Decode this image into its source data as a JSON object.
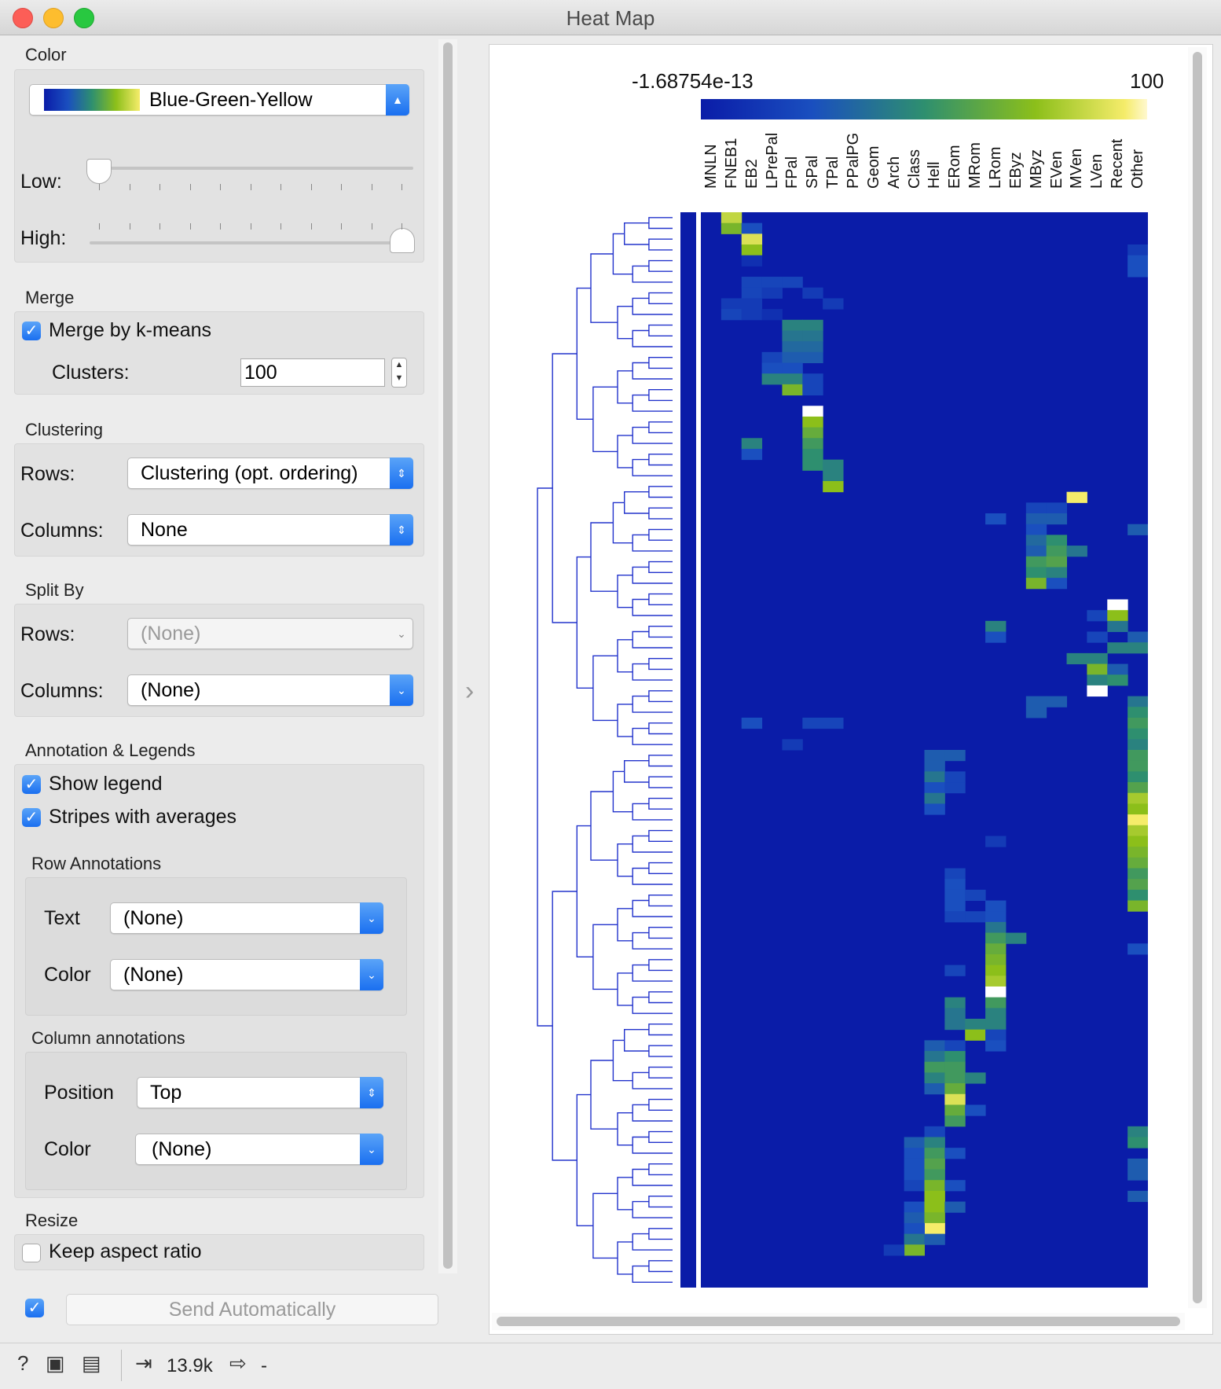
{
  "window": {
    "title": "Heat Map"
  },
  "color": {
    "section": "Color",
    "palette": "Blue-Green-Yellow",
    "low_label": "Low:",
    "high_label": "High:",
    "low_value": 0.0,
    "high_value": 1.0
  },
  "merge": {
    "section": "Merge",
    "merge_label": "Merge by k-means",
    "merge_checked": true,
    "clusters_label": "Clusters:",
    "clusters_value": "100"
  },
  "clustering": {
    "section": "Clustering",
    "rows_label": "Rows:",
    "rows_value": "Clustering (opt. ordering)",
    "columns_label": "Columns:",
    "columns_value": "None"
  },
  "split": {
    "section": "Split By",
    "rows_label": "Rows:",
    "rows_value": "(None)",
    "columns_label": "Columns:",
    "columns_value": "(None)"
  },
  "annotation": {
    "section": "Annotation & Legends",
    "show_legend": "Show legend",
    "stripes": "Stripes with averages",
    "row_section": "Row Annotations",
    "text_label": "Text",
    "text_value": "(None)",
    "row_color_label": "Color",
    "row_color_value": "(None)",
    "col_section": "Column annotations",
    "position_label": "Position",
    "position_value": "Top",
    "col_color_label": "Color",
    "col_color_value": "(None)"
  },
  "resize": {
    "section": "Resize",
    "keep_aspect": "Keep aspect ratio",
    "keep_checked": false
  },
  "send": {
    "label": "Send Automatically",
    "checked": true
  },
  "status": {
    "input_count": "13.9k",
    "output_count": "-"
  },
  "icons": [
    "help-icon",
    "save-icon",
    "report-icon",
    "input-icon",
    "output-icon",
    "expand-arrow-icon"
  ],
  "colors": {
    "low": "#0a1ca8",
    "mid": "#2e8f6f",
    "high_mid": "#8cbf1a",
    "high": "#f5ec6a",
    "max": "#ffffff"
  },
  "chart_data": {
    "type": "heatmap",
    "legend_min": "-1.68754e-13",
    "legend_max": "100",
    "columns": [
      "MNLN",
      "FNEB1",
      "EB2",
      "LPrePal",
      "FPal",
      "SPal",
      "TPal",
      "PPalPG",
      "Geom",
      "Arch",
      "Class",
      "Hell",
      "ERom",
      "MRom",
      "LRom",
      "EByz",
      "MByz",
      "EVen",
      "MVen",
      "LVen",
      "Recent",
      "Other"
    ],
    "rows": 100,
    "cells": [
      {
        "r": 0,
        "c": 1,
        "v": 85
      },
      {
        "r": 1,
        "c": 1,
        "v": 70
      },
      {
        "r": 1,
        "c": 2,
        "v": 25
      },
      {
        "r": 2,
        "c": 2,
        "v": 90
      },
      {
        "r": 3,
        "c": 2,
        "v": 75
      },
      {
        "r": 3,
        "c": 21,
        "v": 15
      },
      {
        "r": 4,
        "c": 2,
        "v": 10
      },
      {
        "r": 4,
        "c": 21,
        "v": 25
      },
      {
        "r": 5,
        "c": 21,
        "v": 25
      },
      {
        "r": 6,
        "c": 2,
        "v": 20
      },
      {
        "r": 6,
        "c": 3,
        "v": 20
      },
      {
        "r": 6,
        "c": 4,
        "v": 20
      },
      {
        "r": 7,
        "c": 2,
        "v": 20
      },
      {
        "r": 7,
        "c": 3,
        "v": 15
      },
      {
        "r": 7,
        "c": 5,
        "v": 15
      },
      {
        "r": 8,
        "c": 1,
        "v": 15
      },
      {
        "r": 8,
        "c": 2,
        "v": 15
      },
      {
        "r": 8,
        "c": 6,
        "v": 15
      },
      {
        "r": 9,
        "c": 1,
        "v": 20
      },
      {
        "r": 9,
        "c": 2,
        "v": 15
      },
      {
        "r": 9,
        "c": 3,
        "v": 10
      },
      {
        "r": 10,
        "c": 4,
        "v": 45
      },
      {
        "r": 10,
        "c": 5,
        "v": 45
      },
      {
        "r": 11,
        "c": 4,
        "v": 40
      },
      {
        "r": 11,
        "c": 5,
        "v": 40
      },
      {
        "r": 12,
        "c": 4,
        "v": 35
      },
      {
        "r": 12,
        "c": 5,
        "v": 35
      },
      {
        "r": 13,
        "c": 3,
        "v": 20
      },
      {
        "r": 13,
        "c": 4,
        "v": 30
      },
      {
        "r": 13,
        "c": 5,
        "v": 30
      },
      {
        "r": 14,
        "c": 3,
        "v": 25
      },
      {
        "r": 14,
        "c": 4,
        "v": 25
      },
      {
        "r": 15,
        "c": 3,
        "v": 45
      },
      {
        "r": 15,
        "c": 4,
        "v": 45
      },
      {
        "r": 15,
        "c": 5,
        "v": 20
      },
      {
        "r": 16,
        "c": 4,
        "v": 70
      },
      {
        "r": 16,
        "c": 5,
        "v": 20
      },
      {
        "r": 18,
        "c": 5,
        "v": 100
      },
      {
        "r": 19,
        "c": 5,
        "v": 75
      },
      {
        "r": 20,
        "c": 5,
        "v": 65
      },
      {
        "r": 21,
        "c": 2,
        "v": 45
      },
      {
        "r": 21,
        "c": 5,
        "v": 55
      },
      {
        "r": 22,
        "c": 2,
        "v": 25
      },
      {
        "r": 22,
        "c": 5,
        "v": 50
      },
      {
        "r": 23,
        "c": 5,
        "v": 50
      },
      {
        "r": 23,
        "c": 6,
        "v": 45
      },
      {
        "r": 24,
        "c": 6,
        "v": 45
      },
      {
        "r": 25,
        "c": 6,
        "v": 75
      },
      {
        "r": 26,
        "c": 18,
        "v": 95
      },
      {
        "r": 27,
        "c": 16,
        "v": 20
      },
      {
        "r": 27,
        "c": 17,
        "v": 20
      },
      {
        "r": 28,
        "c": 14,
        "v": 25
      },
      {
        "r": 28,
        "c": 16,
        "v": 30
      },
      {
        "r": 28,
        "c": 17,
        "v": 30
      },
      {
        "r": 29,
        "c": 16,
        "v": 25
      },
      {
        "r": 29,
        "c": 21,
        "v": 30
      },
      {
        "r": 30,
        "c": 16,
        "v": 35
      },
      {
        "r": 30,
        "c": 17,
        "v": 50
      },
      {
        "r": 31,
        "c": 16,
        "v": 30
      },
      {
        "r": 31,
        "c": 17,
        "v": 55
      },
      {
        "r": 31,
        "c": 18,
        "v": 40
      },
      {
        "r": 32,
        "c": 16,
        "v": 55
      },
      {
        "r": 32,
        "c": 17,
        "v": 60
      },
      {
        "r": 33,
        "c": 16,
        "v": 50
      },
      {
        "r": 33,
        "c": 17,
        "v": 45
      },
      {
        "r": 34,
        "c": 16,
        "v": 70
      },
      {
        "r": 34,
        "c": 17,
        "v": 25
      },
      {
        "r": 36,
        "c": 20,
        "v": 100
      },
      {
        "r": 37,
        "c": 19,
        "v": 20
      },
      {
        "r": 37,
        "c": 20,
        "v": 75
      },
      {
        "r": 38,
        "c": 14,
        "v": 45
      },
      {
        "r": 38,
        "c": 20,
        "v": 40
      },
      {
        "r": 39,
        "c": 14,
        "v": 25
      },
      {
        "r": 39,
        "c": 19,
        "v": 20
      },
      {
        "r": 39,
        "c": 21,
        "v": 30
      },
      {
        "r": 40,
        "c": 20,
        "v": 45
      },
      {
        "r": 40,
        "c": 21,
        "v": 45
      },
      {
        "r": 41,
        "c": 18,
        "v": 45
      },
      {
        "r": 41,
        "c": 19,
        "v": 45
      },
      {
        "r": 42,
        "c": 19,
        "v": 70
      },
      {
        "r": 42,
        "c": 20,
        "v": 30
      },
      {
        "r": 43,
        "c": 19,
        "v": 45
      },
      {
        "r": 43,
        "c": 20,
        "v": 50
      },
      {
        "r": 44,
        "c": 19,
        "v": 100
      },
      {
        "r": 45,
        "c": 16,
        "v": 30
      },
      {
        "r": 45,
        "c": 17,
        "v": 30
      },
      {
        "r": 45,
        "c": 21,
        "v": 40
      },
      {
        "r": 46,
        "c": 16,
        "v": 30
      },
      {
        "r": 46,
        "c": 21,
        "v": 50
      },
      {
        "r": 47,
        "c": 2,
        "v": 25
      },
      {
        "r": 47,
        "c": 5,
        "v": 20
      },
      {
        "r": 47,
        "c": 6,
        "v": 20
      },
      {
        "r": 47,
        "c": 21,
        "v": 55
      },
      {
        "r": 48,
        "c": 21,
        "v": 50
      },
      {
        "r": 49,
        "c": 4,
        "v": 15
      },
      {
        "r": 49,
        "c": 21,
        "v": 45
      },
      {
        "r": 50,
        "c": 11,
        "v": 30
      },
      {
        "r": 50,
        "c": 12,
        "v": 30
      },
      {
        "r": 50,
        "c": 21,
        "v": 55
      },
      {
        "r": 51,
        "c": 11,
        "v": 30
      },
      {
        "r": 51,
        "c": 21,
        "v": 55
      },
      {
        "r": 52,
        "c": 11,
        "v": 40
      },
      {
        "r": 52,
        "c": 12,
        "v": 20
      },
      {
        "r": 52,
        "c": 21,
        "v": 50
      },
      {
        "r": 53,
        "c": 11,
        "v": 25
      },
      {
        "r": 53,
        "c": 12,
        "v": 20
      },
      {
        "r": 53,
        "c": 21,
        "v": 60
      },
      {
        "r": 54,
        "c": 11,
        "v": 40
      },
      {
        "r": 54,
        "c": 21,
        "v": 80
      },
      {
        "r": 55,
        "c": 11,
        "v": 25
      },
      {
        "r": 55,
        "c": 21,
        "v": 75
      },
      {
        "r": 56,
        "c": 21,
        "v": 95
      },
      {
        "r": 57,
        "c": 21,
        "v": 80
      },
      {
        "r": 58,
        "c": 14,
        "v": 15
      },
      {
        "r": 58,
        "c": 21,
        "v": 75
      },
      {
        "r": 59,
        "c": 21,
        "v": 70
      },
      {
        "r": 60,
        "c": 21,
        "v": 65
      },
      {
        "r": 61,
        "c": 12,
        "v": 20
      },
      {
        "r": 61,
        "c": 21,
        "v": 55
      },
      {
        "r": 62,
        "c": 12,
        "v": 25
      },
      {
        "r": 62,
        "c": 21,
        "v": 60
      },
      {
        "r": 63,
        "c": 12,
        "v": 25
      },
      {
        "r": 63,
        "c": 13,
        "v": 20
      },
      {
        "r": 63,
        "c": 21,
        "v": 50
      },
      {
        "r": 64,
        "c": 12,
        "v": 25
      },
      {
        "r": 64,
        "c": 14,
        "v": 25
      },
      {
        "r": 64,
        "c": 21,
        "v": 70
      },
      {
        "r": 65,
        "c": 12,
        "v": 20
      },
      {
        "r": 65,
        "c": 13,
        "v": 20
      },
      {
        "r": 65,
        "c": 14,
        "v": 25
      },
      {
        "r": 66,
        "c": 14,
        "v": 40
      },
      {
        "r": 67,
        "c": 14,
        "v": 55
      },
      {
        "r": 67,
        "c": 15,
        "v": 45
      },
      {
        "r": 68,
        "c": 14,
        "v": 65
      },
      {
        "r": 68,
        "c": 21,
        "v": 25
      },
      {
        "r": 69,
        "c": 14,
        "v": 70
      },
      {
        "r": 70,
        "c": 14,
        "v": 75
      },
      {
        "r": 70,
        "c": 12,
        "v": 20
      },
      {
        "r": 71,
        "c": 14,
        "v": 80
      },
      {
        "r": 72,
        "c": 14,
        "v": 100
      },
      {
        "r": 73,
        "c": 12,
        "v": 45
      },
      {
        "r": 73,
        "c": 14,
        "v": 55
      },
      {
        "r": 74,
        "c": 12,
        "v": 40
      },
      {
        "r": 74,
        "c": 14,
        "v": 45
      },
      {
        "r": 75,
        "c": 12,
        "v": 40
      },
      {
        "r": 75,
        "c": 13,
        "v": 45
      },
      {
        "r": 75,
        "c": 14,
        "v": 45
      },
      {
        "r": 76,
        "c": 13,
        "v": 75
      },
      {
        "r": 76,
        "c": 14,
        "v": 20
      },
      {
        "r": 77,
        "c": 11,
        "v": 30
      },
      {
        "r": 77,
        "c": 12,
        "v": 20
      },
      {
        "r": 77,
        "c": 14,
        "v": 25
      },
      {
        "r": 78,
        "c": 11,
        "v": 40
      },
      {
        "r": 78,
        "c": 12,
        "v": 50
      },
      {
        "r": 79,
        "c": 11,
        "v": 55
      },
      {
        "r": 79,
        "c": 12,
        "v": 55
      },
      {
        "r": 80,
        "c": 11,
        "v": 45
      },
      {
        "r": 80,
        "c": 12,
        "v": 55
      },
      {
        "r": 80,
        "c": 13,
        "v": 45
      },
      {
        "r": 81,
        "c": 11,
        "v": 30
      },
      {
        "r": 81,
        "c": 12,
        "v": 65
      },
      {
        "r": 82,
        "c": 12,
        "v": 90
      },
      {
        "r": 83,
        "c": 12,
        "v": 65
      },
      {
        "r": 83,
        "c": 13,
        "v": 25
      },
      {
        "r": 84,
        "c": 12,
        "v": 55
      },
      {
        "r": 85,
        "c": 11,
        "v": 20
      },
      {
        "r": 85,
        "c": 21,
        "v": 45
      },
      {
        "r": 86,
        "c": 10,
        "v": 30
      },
      {
        "r": 86,
        "c": 11,
        "v": 45
      },
      {
        "r": 86,
        "c": 21,
        "v": 50
      },
      {
        "r": 87,
        "c": 10,
        "v": 25
      },
      {
        "r": 87,
        "c": 11,
        "v": 55
      },
      {
        "r": 87,
        "c": 12,
        "v": 25
      },
      {
        "r": 88,
        "c": 10,
        "v": 25
      },
      {
        "r": 88,
        "c": 11,
        "v": 60
      },
      {
        "r": 88,
        "c": 21,
        "v": 30
      },
      {
        "r": 89,
        "c": 10,
        "v": 25
      },
      {
        "r": 89,
        "c": 11,
        "v": 55
      },
      {
        "r": 89,
        "c": 21,
        "v": 30
      },
      {
        "r": 90,
        "c": 10,
        "v": 20
      },
      {
        "r": 90,
        "c": 11,
        "v": 70
      },
      {
        "r": 90,
        "c": 12,
        "v": 25
      },
      {
        "r": 91,
        "c": 11,
        "v": 75
      },
      {
        "r": 91,
        "c": 21,
        "v": 30
      },
      {
        "r": 92,
        "c": 10,
        "v": 25
      },
      {
        "r": 92,
        "c": 11,
        "v": 75
      },
      {
        "r": 92,
        "c": 12,
        "v": 30
      },
      {
        "r": 93,
        "c": 10,
        "v": 30
      },
      {
        "r": 93,
        "c": 11,
        "v": 70
      },
      {
        "r": 94,
        "c": 11,
        "v": 95
      },
      {
        "r": 94,
        "c": 10,
        "v": 25
      },
      {
        "r": 95,
        "c": 10,
        "v": 40
      },
      {
        "r": 95,
        "c": 11,
        "v": 30
      },
      {
        "r": 96,
        "c": 10,
        "v": 70
      },
      {
        "r": 96,
        "c": 9,
        "v": 15
      }
    ]
  }
}
